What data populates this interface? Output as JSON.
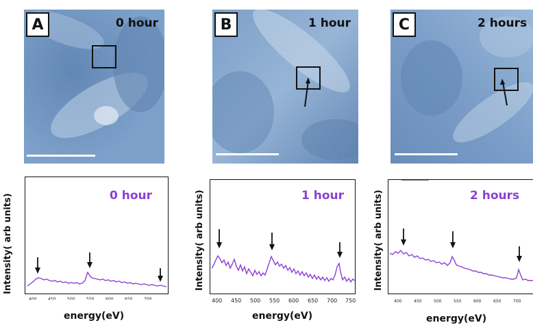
{
  "panels": [
    {
      "letter": "A",
      "time": "0 hour"
    },
    {
      "letter": "B",
      "time": "1 hour"
    },
    {
      "letter": "C",
      "time": "2 hours"
    }
  ],
  "spectra": [
    {
      "title": "0 hour",
      "ylabel": "Intensity( arb units)",
      "xlabel": "energy(eV)",
      "ticks": [
        "400",
        "450",
        "500",
        "550",
        "600",
        "650",
        "700"
      ]
    },
    {
      "title": "1 hour",
      "ylabel": "Intensity( arb units)",
      "xlabel": "energy(eV)",
      "ticks": [
        "400",
        "450",
        "500",
        "550",
        "600",
        "650",
        "700",
        "750"
      ]
    },
    {
      "title": "2 hours",
      "ylabel": "Intensity( arb units)",
      "xlabel": "energy(eV)",
      "ticks": [
        "400",
        "450",
        "500",
        "550",
        "600",
        "650",
        "700"
      ]
    }
  ],
  "colors": {
    "micrograph": "#5d86b6",
    "spectrum": "#8a3fd6"
  }
}
